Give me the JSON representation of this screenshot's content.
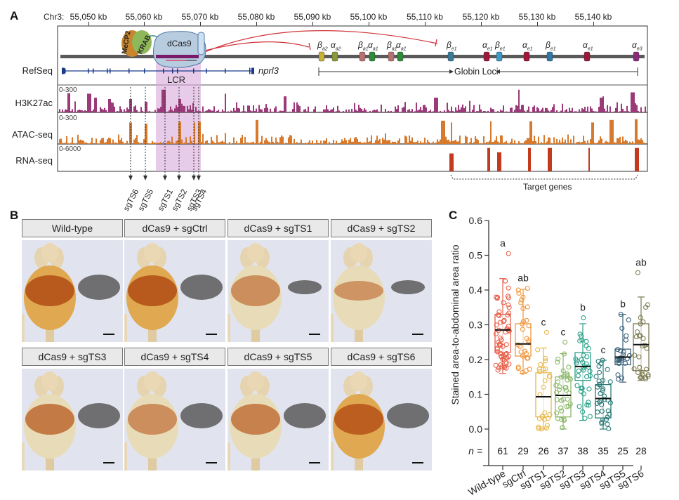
{
  "panel_a": {
    "letter": "A",
    "chrom_prefix": "Chr3:",
    "kb_ticks": [
      "55,050 kb",
      "55,060 kb",
      "55,070 kb",
      "55,080 kb",
      "55,090 kb",
      "55,100 kb",
      "55,110 kb",
      "55,120 kb",
      "55,130 kb",
      "55,140 kb"
    ],
    "complex": {
      "mecp2": "MeCP2",
      "krab": "KRAB",
      "dcas9": "dCas9"
    },
    "genes": [
      {
        "greek": "β",
        "sub": "a2",
        "color": "#c8b233"
      },
      {
        "greek": "α",
        "sub": "a2",
        "color": "#8a9a3a"
      },
      {
        "greek": "β",
        "sub": "a1",
        "color": "#b87070"
      },
      {
        "greek": "α",
        "sub": "a1",
        "color": "#2e8b3a"
      },
      {
        "greek": "β",
        "sub": "a1",
        "color": "#b87070"
      },
      {
        "greek": "α",
        "sub": "a1",
        "color": "#2e8b3a"
      },
      {
        "greek": "β",
        "sub": "e1",
        "color": "#3a7a9a"
      },
      {
        "greek": "α",
        "sub": "e1",
        "color": "#a0173a"
      },
      {
        "greek": "β",
        "sub": "e1",
        "color": "#3a9ac8"
      },
      {
        "greek": "α",
        "sub": "e1",
        "color": "#a0173a"
      },
      {
        "greek": "β",
        "sub": "e1",
        "color": "#2e7aa8"
      },
      {
        "greek": "α",
        "sub": "e1",
        "color": "#a0173a"
      },
      {
        "greek": "α",
        "sub": "e3",
        "color": "#8a2a7a"
      }
    ],
    "tracks": [
      {
        "name": "RefSeq",
        "range": ""
      },
      {
        "name": "H3K27ac",
        "range": "0-300",
        "color": "#9b3a78"
      },
      {
        "name": "ATAC-seq",
        "range": "0-300",
        "color": "#d77a2e"
      },
      {
        "name": "RNA-seq",
        "range": "0-6000",
        "color": "#c43a1e"
      }
    ],
    "refseq_gene": "nprl3",
    "lcr_label": "LCR",
    "globin_label": "Globin Loci",
    "target_label": "Target genes",
    "sgrnas": [
      "sgTS6",
      "sgTS5",
      "sgTS1",
      "sgTS2",
      "sgTS3",
      "sgTS4"
    ]
  },
  "panel_b": {
    "letter": "B",
    "conditions": [
      "Wild-type",
      "dCas9 + sgCtrl",
      "dCas9 + sgTS1",
      "dCas9 + sgTS2",
      "dCas9 + sgTS3",
      "dCas9 + sgTS4",
      "dCas9 + sgTS5",
      "dCas9 + sgTS6"
    ]
  },
  "panel_c": {
    "letter": "C",
    "n_prefix": "n ="
  },
  "chart_data": {
    "type": "box",
    "title": "",
    "xlabel": "",
    "ylabel": "Stained area-to-abdominal area ratio",
    "ylim": [
      0,
      0.6
    ],
    "yticks": [
      "0.0",
      "0.1",
      "0.2",
      "0.3",
      "0.4",
      "0.5",
      "0.6"
    ],
    "grid": false,
    "categories": [
      "Wild-type",
      "sgCtrl",
      "sgTS1",
      "sgTS2",
      "sgTS3",
      "sgTS4",
      "sgTS5",
      "sgTS6"
    ],
    "series": [
      {
        "name": "Wild-type",
        "n": 61,
        "letter": "a",
        "color": "#e8604a",
        "q1": 0.22,
        "median": 0.285,
        "q3": 0.33,
        "whisker_low": 0.16,
        "whisker_high": 0.433,
        "max_point": 0.505
      },
      {
        "name": "sgCtrl",
        "n": 29,
        "letter": "ab",
        "color": "#f0963c",
        "q1": 0.21,
        "median": 0.245,
        "q3": 0.303,
        "whisker_low": 0.16,
        "whisker_high": 0.402,
        "max_point": 0.405
      },
      {
        "name": "sgTS1",
        "n": 26,
        "letter": "c",
        "color": "#e8b84a",
        "q1": 0.035,
        "median": 0.093,
        "q3": 0.162,
        "whisker_low": 0.0,
        "whisker_high": 0.233,
        "max_point": 0.278
      },
      {
        "name": "sgTS2",
        "n": 37,
        "letter": "c",
        "color": "#8cb86a",
        "q1": 0.035,
        "median": 0.097,
        "q3": 0.15,
        "whisker_low": 0.0,
        "whisker_high": 0.217,
        "max_point": 0.25
      },
      {
        "name": "sgTS3",
        "n": 38,
        "letter": "b",
        "color": "#2aa088",
        "q1": 0.14,
        "median": 0.18,
        "q3": 0.22,
        "whisker_low": 0.025,
        "whisker_high": 0.303,
        "max_point": 0.32
      },
      {
        "name": "sgTS4",
        "n": 35,
        "letter": "c",
        "color": "#2a7a78",
        "q1": 0.032,
        "median": 0.088,
        "q3": 0.128,
        "whisker_low": 0.0,
        "whisker_high": 0.198,
        "max_point": 0.198
      },
      {
        "name": "sgTS5",
        "n": 25,
        "letter": "b",
        "color": "#3a6078",
        "q1": 0.185,
        "median": 0.207,
        "q3": 0.23,
        "whisker_low": 0.135,
        "whisker_high": 0.33,
        "max_point": 0.33
      },
      {
        "name": "sgTS6",
        "n": 28,
        "letter": "ab",
        "color": "#7a7a50",
        "q1": 0.168,
        "median": 0.243,
        "q3": 0.303,
        "whisker_low": 0.14,
        "whisker_high": 0.38,
        "max_point": 0.45
      }
    ]
  }
}
